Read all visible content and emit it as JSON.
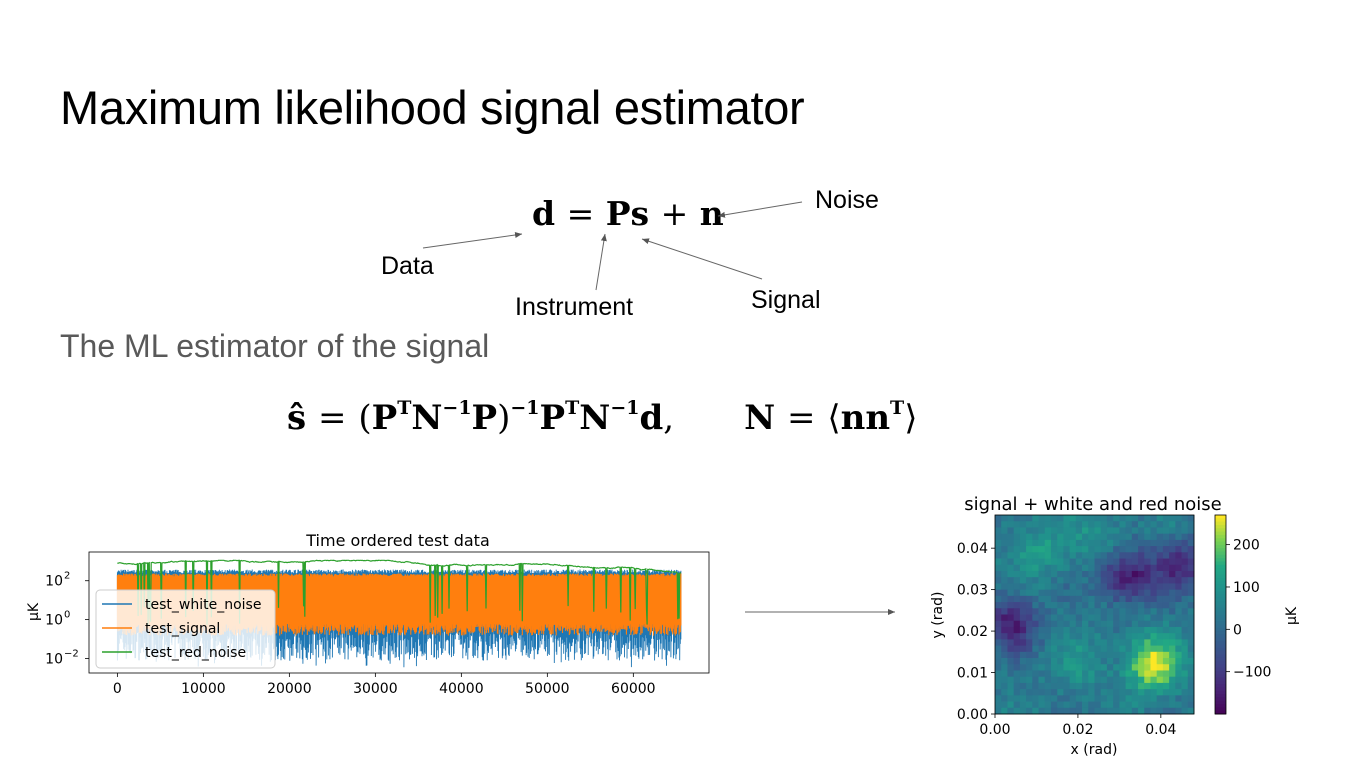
{
  "slide": {
    "title": "Maximum likelihood signal estimator",
    "subtitle": "The ML estimator of the signal"
  },
  "equation1": {
    "text": "d = Ps + n",
    "labels": {
      "data": "Data",
      "instrument": "Instrument",
      "signal": "Signal",
      "noise": "Noise"
    }
  },
  "equation2": {
    "estimator": "ŝ = (PᵀN⁻¹P)⁻¹PᵀN⁻¹d,",
    "covariance": "N = ⟨nnᵀ⟩"
  },
  "chart_data": [
    {
      "type": "line",
      "title": "Time ordered test data",
      "xlabel": "",
      "ylabel": "μK",
      "yscale": "log",
      "xlim": [
        -3300,
        68800
      ],
      "ylim": [
        0.0018,
        3000
      ],
      "xticks": [
        0,
        10000,
        20000,
        30000,
        40000,
        50000,
        60000
      ],
      "yticks": [
        0.01,
        1,
        100
      ],
      "ytick_labels": [
        "10",
        "10",
        "10"
      ],
      "ytick_exponents": [
        "−2",
        "0",
        "2"
      ],
      "legend_position": "lower-left",
      "series": [
        {
          "name": "test_white_noise",
          "color": "#1f77b4",
          "x": [
            0,
            65536
          ],
          "typical_upper": 300,
          "typical_lower": 0.05,
          "min_dip": 0.003
        },
        {
          "name": "test_signal",
          "color": "#ff7f0e",
          "x": [
            0,
            65536
          ],
          "typical_upper": 200,
          "typical_lower": 0.3
        },
        {
          "name": "test_red_noise",
          "color": "#2ca02c",
          "x": [
            0,
            65536
          ],
          "typical_upper": 800,
          "typical_lower": 0.5
        }
      ]
    },
    {
      "type": "heatmap",
      "title": "signal + white and red noise",
      "xlabel": "x (rad)",
      "ylabel": "y (rad)",
      "colorbar_label": "μK",
      "colormap": "viridis",
      "xlim": [
        0,
        0.048
      ],
      "ylim": [
        0,
        0.048
      ],
      "xticks": [
        "0.00",
        "0.02",
        "0.04"
      ],
      "yticks": [
        "0.00",
        "0.01",
        "0.02",
        "0.03",
        "0.04"
      ],
      "value_range": [
        -200,
        270
      ],
      "colorbar_ticks": [
        "−100",
        "0",
        "100",
        "200"
      ],
      "colorbar_tick_values": [
        -100,
        0,
        100,
        200
      ],
      "grid_size": 32,
      "features": [
        {
          "x": 0.038,
          "y": 0.012,
          "value": 260
        },
        {
          "x": 0.032,
          "y": 0.033,
          "value": -170
        },
        {
          "x": 0.004,
          "y": 0.022,
          "value": -150
        },
        {
          "x": 0.01,
          "y": 0.04,
          "value": 120
        },
        {
          "x": 0.02,
          "y": 0.012,
          "value": 90
        },
        {
          "x": 0.045,
          "y": 0.036,
          "value": -120
        },
        {
          "x": 0.026,
          "y": 0.043,
          "value": 100
        }
      ]
    }
  ]
}
